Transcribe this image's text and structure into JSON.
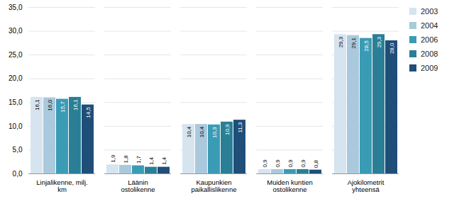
{
  "chart_data": {
    "type": "bar",
    "categories": [
      "Linjalikenne, milj. km",
      "Läänin ostolikenne",
      "Kaupunkien\npaikallislikenne",
      "Muiden kuntien\nostolikenne",
      "Ajokilometrit\nyhteensä"
    ],
    "series": [
      {
        "name": "2003",
        "color": "#d6e4f0",
        "values": [
          16.1,
          1.9,
          10.4,
          0.9,
          29.3
        ],
        "value_labels": [
          "16,1",
          "1,9",
          "10,4",
          "0,9",
          "29,3"
        ]
      },
      {
        "name": "2004",
        "color": "#aac9dc",
        "values": [
          16.0,
          1.8,
          10.4,
          0.9,
          29.1
        ],
        "value_labels": [
          "16,0",
          "1,8",
          "10,4",
          "0,9",
          "29,1"
        ]
      },
      {
        "name": "2006",
        "color": "#3a9bb5",
        "values": [
          15.7,
          1.7,
          10.3,
          0.9,
          28.5
        ],
        "value_labels": [
          "15,7",
          "1,7",
          "10,3",
          "0,9",
          "28,5"
        ]
      },
      {
        "name": "2008",
        "color": "#2a7f96",
        "values": [
          16.1,
          1.4,
          10.9,
          0.9,
          29.3
        ],
        "value_labels": [
          "16,1",
          "1,4",
          "10,9",
          "0,9",
          "29,3"
        ]
      },
      {
        "name": "2009",
        "color": "#1f4e79",
        "values": [
          14.5,
          1.4,
          11.3,
          0.8,
          28.0
        ],
        "value_labels": [
          "14,5",
          "1,4",
          "11,3",
          "0,8",
          "28,0"
        ]
      }
    ],
    "ylim": [
      0,
      35
    ],
    "yticks": [
      {
        "value": 0,
        "label": "0,0"
      },
      {
        "value": 5,
        "label": "5,0"
      },
      {
        "value": 10,
        "label": "10,0"
      },
      {
        "value": 15,
        "label": "15,0"
      },
      {
        "value": 20,
        "label": "20,0"
      },
      {
        "value": 25,
        "label": "25,0"
      },
      {
        "value": 30,
        "label": "30,0"
      },
      {
        "value": 35,
        "label": "35,0"
      }
    ],
    "grid": true,
    "legend": "right",
    "data_labels": true
  }
}
